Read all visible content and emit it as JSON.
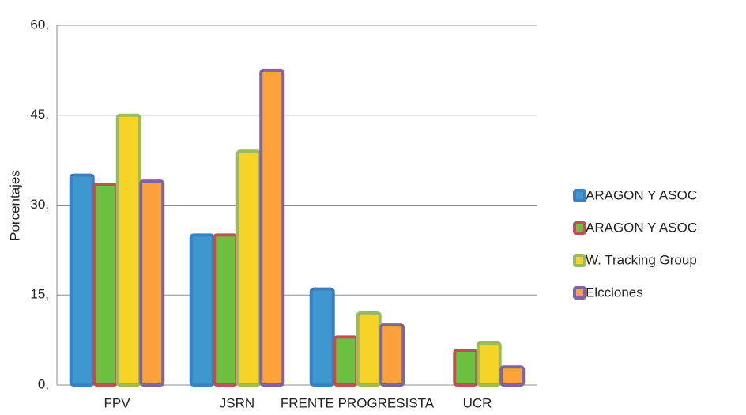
{
  "chart_data": {
    "type": "bar",
    "y_label": "Porcentajes",
    "categories": [
      "FPV",
      "JSRN",
      "FRENTE PROGRESISTA",
      "UCR"
    ],
    "series": [
      {
        "name": "ARAGON Y ASOC",
        "color": "#3b7fc4",
        "fill": "#3f97d0",
        "values": [
          35,
          25,
          16,
          null
        ]
      },
      {
        "name": "ARAGON Y ASOC",
        "color": "#c0504d",
        "fill": "#6cbf3f",
        "values": [
          33.5,
          25,
          8,
          5.8
        ]
      },
      {
        "name": "W. Tracking Group",
        "color": "#9bbb59",
        "fill": "#f5d327",
        "values": [
          45,
          39,
          12,
          7
        ]
      },
      {
        "name": "Elcciones",
        "color": "#8064a2",
        "fill": "#fca23a",
        "values": [
          34,
          52.5,
          10,
          3
        ]
      }
    ],
    "ylim": [
      0,
      60
    ],
    "yticks": [
      {
        "value": 0,
        "label": "0,"
      },
      {
        "value": 15,
        "label": "15,"
      },
      {
        "value": 30,
        "label": "30,"
      },
      {
        "value": 45,
        "label": "45,"
      },
      {
        "value": 60,
        "label": "60,"
      }
    ],
    "grid": true,
    "legend": "right"
  }
}
